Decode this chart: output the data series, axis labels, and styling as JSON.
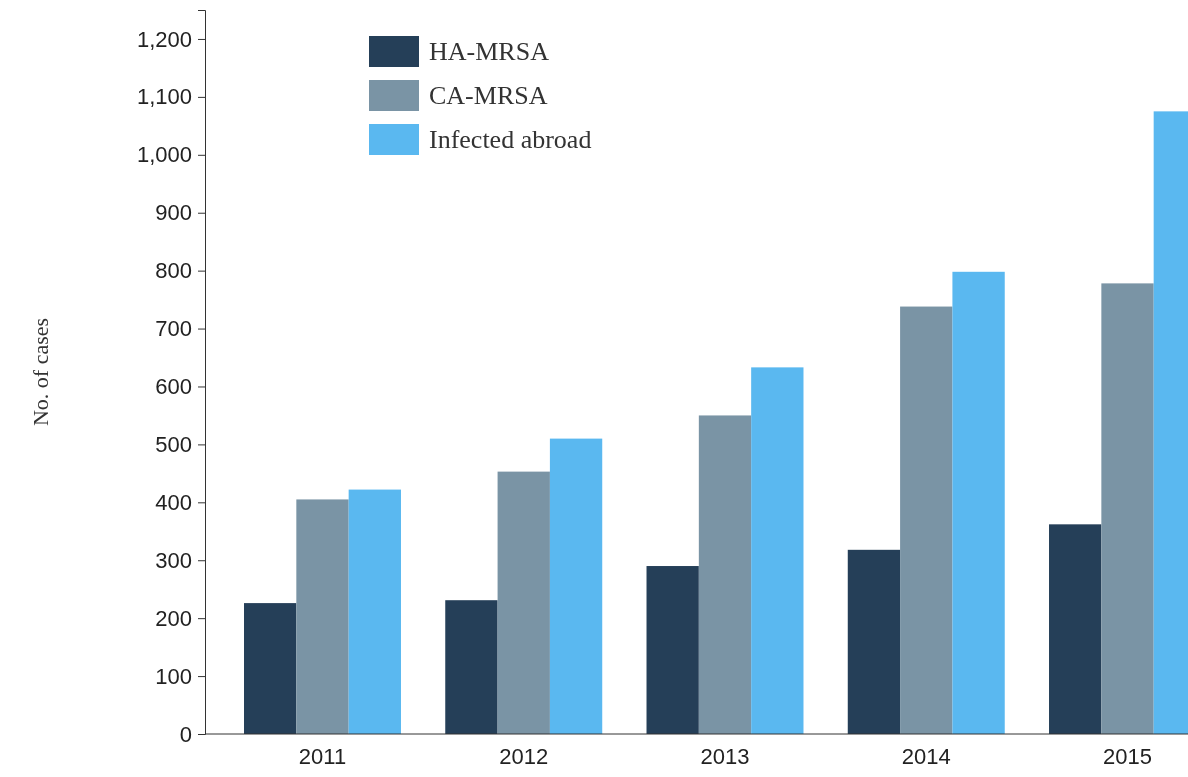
{
  "chart_data": {
    "type": "bar",
    "ylabel": "No. of cases",
    "categories": [
      "2011",
      "2012",
      "2013",
      "2014",
      "2015"
    ],
    "series": [
      {
        "name": "HA-MRSA",
        "color": "#253f58",
        "values": [
          226,
          231,
          290,
          318,
          362
        ]
      },
      {
        "name": "CA-MRSA",
        "color": "#7a94a5",
        "values": [
          405,
          453,
          550,
          738,
          778
        ]
      },
      {
        "name": "Infected abroad",
        "color": "#5ab8f0",
        "values": [
          422,
          510,
          633,
          798,
          1075
        ]
      }
    ],
    "ylim": [
      0,
      1250
    ],
    "yticks": [
      0,
      {
        "value": 100,
        "label": "100"
      },
      {
        "value": 200,
        "label": "200"
      },
      {
        "value": 300,
        "label": "300"
      },
      {
        "value": 400,
        "label": "400"
      },
      {
        "value": 500,
        "label": "500"
      },
      {
        "value": 600,
        "label": "600"
      },
      {
        "value": 700,
        "label": "700"
      },
      {
        "value": 800,
        "label": "800"
      },
      {
        "value": 900,
        "label": "900"
      },
      {
        "value": 1000,
        "label": "1,000"
      },
      {
        "value": 1100,
        "label": "1,100"
      },
      {
        "value": 1200,
        "label": "1,200"
      }
    ],
    "grid": false,
    "legend": "top left"
  }
}
